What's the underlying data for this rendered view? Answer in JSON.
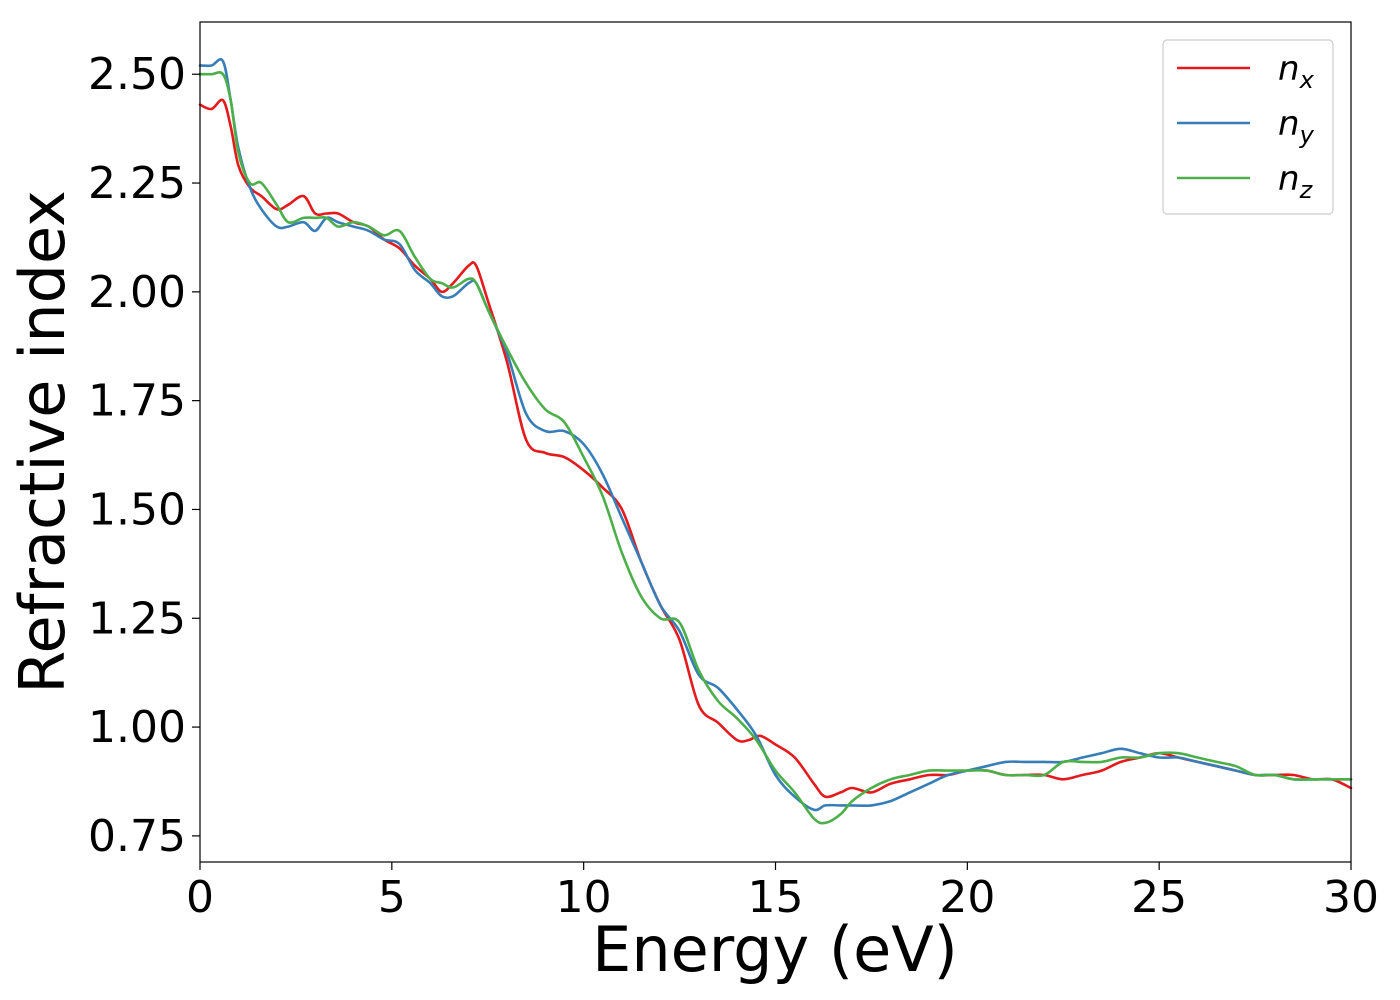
{
  "chart_data": {
    "type": "line",
    "title": "",
    "xlabel": "Energy (eV)",
    "ylabel": "Refractive index",
    "xlim": [
      0,
      30
    ],
    "ylim": [
      0.69,
      2.62
    ],
    "xticks": [
      0,
      5,
      10,
      15,
      20,
      25,
      30
    ],
    "xtick_labels": [
      "0",
      "5",
      "10",
      "15",
      "20",
      "25",
      "30"
    ],
    "yticks": [
      0.75,
      1.0,
      1.25,
      1.5,
      1.75,
      2.0,
      2.25,
      2.5
    ],
    "ytick_labels": [
      "0.75",
      "1.00",
      "1.25",
      "1.50",
      "1.75",
      "2.00",
      "2.25",
      "2.50"
    ],
    "grid": false,
    "legend": {
      "position": "top-right",
      "entries": [
        {
          "base": "n",
          "sub": "x",
          "color": "#e41a1c"
        },
        {
          "base": "n",
          "sub": "y",
          "color": "#377eb8"
        },
        {
          "base": "n",
          "sub": "z",
          "color": "#4daf4a"
        }
      ]
    },
    "series": [
      {
        "name": "nx",
        "color": "#e41a1c",
        "x": [
          0,
          0.3,
          0.6,
          0.8,
          1.0,
          1.3,
          1.6,
          2.0,
          2.3,
          2.7,
          3.0,
          3.3,
          3.6,
          4.0,
          4.4,
          4.8,
          5.2,
          5.6,
          6.0,
          6.3,
          6.6,
          7.0,
          7.2,
          7.5,
          8.0,
          8.5,
          9.0,
          9.5,
          10.0,
          10.5,
          11.0,
          11.5,
          12.0,
          12.5,
          13.0,
          13.5,
          14.0,
          14.3,
          14.6,
          15.0,
          15.5,
          16.0,
          16.3,
          16.7,
          17.0,
          17.5,
          18.0,
          18.5,
          19.0,
          19.5,
          20.0,
          20.5,
          21.0,
          21.5,
          22.0,
          22.5,
          23.0,
          23.5,
          24.0,
          24.5,
          25.0,
          25.5,
          26.0,
          26.5,
          27.0,
          27.5,
          28.0,
          28.5,
          29.0,
          29.5,
          30.0
        ],
        "y": [
          2.43,
          2.42,
          2.44,
          2.38,
          2.29,
          2.24,
          2.22,
          2.19,
          2.2,
          2.22,
          2.18,
          2.18,
          2.18,
          2.16,
          2.15,
          2.12,
          2.1,
          2.06,
          2.03,
          2.0,
          2.02,
          2.06,
          2.06,
          1.98,
          1.84,
          1.66,
          1.63,
          1.62,
          1.59,
          1.55,
          1.5,
          1.38,
          1.28,
          1.2,
          1.05,
          1.01,
          0.97,
          0.97,
          0.98,
          0.96,
          0.93,
          0.87,
          0.84,
          0.85,
          0.86,
          0.85,
          0.87,
          0.88,
          0.89,
          0.89,
          0.9,
          0.9,
          0.89,
          0.89,
          0.89,
          0.88,
          0.89,
          0.9,
          0.92,
          0.93,
          0.94,
          0.93,
          0.92,
          0.91,
          0.9,
          0.89,
          0.89,
          0.89,
          0.88,
          0.88,
          0.86
        ]
      },
      {
        "name": "ny",
        "color": "#377eb8",
        "x": [
          0,
          0.3,
          0.6,
          0.8,
          1.0,
          1.3,
          1.6,
          2.0,
          2.3,
          2.7,
          3.0,
          3.3,
          3.6,
          4.0,
          4.4,
          4.8,
          5.2,
          5.6,
          6.0,
          6.3,
          6.6,
          7.0,
          7.2,
          7.5,
          8.0,
          8.5,
          9.0,
          9.5,
          10.0,
          10.5,
          11.0,
          11.5,
          12.0,
          12.5,
          13.0,
          13.5,
          14.0,
          14.5,
          15.0,
          15.5,
          16.0,
          16.3,
          16.7,
          17.0,
          17.5,
          18.0,
          18.5,
          19.0,
          19.5,
          20.0,
          20.5,
          21.0,
          21.5,
          22.0,
          22.5,
          23.0,
          23.5,
          24.0,
          24.5,
          25.0,
          25.5,
          26.0,
          26.5,
          27.0,
          27.5,
          28.0,
          28.5,
          29.0,
          29.5,
          30.0
        ],
        "y": [
          2.52,
          2.52,
          2.53,
          2.44,
          2.33,
          2.24,
          2.19,
          2.15,
          2.15,
          2.16,
          2.14,
          2.17,
          2.16,
          2.15,
          2.14,
          2.12,
          2.11,
          2.05,
          2.02,
          1.99,
          1.99,
          2.02,
          2.02,
          1.96,
          1.86,
          1.72,
          1.68,
          1.68,
          1.65,
          1.58,
          1.48,
          1.38,
          1.28,
          1.22,
          1.12,
          1.09,
          1.04,
          0.98,
          0.89,
          0.84,
          0.81,
          0.82,
          0.82,
          0.82,
          0.82,
          0.83,
          0.85,
          0.87,
          0.89,
          0.9,
          0.91,
          0.92,
          0.92,
          0.92,
          0.92,
          0.93,
          0.94,
          0.95,
          0.94,
          0.93,
          0.93,
          0.92,
          0.91,
          0.9,
          0.89,
          0.89,
          0.88,
          0.88,
          0.88,
          0.88
        ]
      },
      {
        "name": "nz",
        "color": "#4daf4a",
        "x": [
          0,
          0.3,
          0.6,
          0.8,
          1.0,
          1.3,
          1.6,
          2.0,
          2.3,
          2.7,
          3.0,
          3.3,
          3.6,
          4.0,
          4.4,
          4.8,
          5.2,
          5.6,
          6.0,
          6.3,
          6.6,
          7.0,
          7.2,
          7.5,
          8.0,
          8.5,
          9.0,
          9.5,
          10.0,
          10.5,
          11.0,
          11.5,
          12.0,
          12.5,
          13.0,
          13.5,
          14.0,
          14.5,
          15.0,
          15.5,
          16.0,
          16.3,
          16.7,
          17.0,
          17.5,
          18.0,
          18.5,
          19.0,
          19.5,
          20.0,
          20.5,
          21.0,
          21.5,
          22.0,
          22.5,
          23.0,
          23.5,
          24.0,
          24.5,
          25.0,
          25.5,
          26.0,
          26.5,
          27.0,
          27.5,
          28.0,
          28.5,
          29.0,
          29.5,
          30.0
        ],
        "y": [
          2.5,
          2.5,
          2.5,
          2.44,
          2.32,
          2.25,
          2.25,
          2.2,
          2.16,
          2.17,
          2.17,
          2.17,
          2.15,
          2.16,
          2.15,
          2.13,
          2.14,
          2.08,
          2.03,
          2.02,
          2.01,
          2.03,
          2.02,
          1.96,
          1.87,
          1.79,
          1.73,
          1.7,
          1.62,
          1.53,
          1.4,
          1.3,
          1.25,
          1.24,
          1.13,
          1.06,
          1.02,
          0.97,
          0.9,
          0.85,
          0.79,
          0.78,
          0.8,
          0.83,
          0.86,
          0.88,
          0.89,
          0.9,
          0.9,
          0.9,
          0.9,
          0.89,
          0.89,
          0.89,
          0.92,
          0.92,
          0.92,
          0.93,
          0.93,
          0.94,
          0.94,
          0.93,
          0.92,
          0.91,
          0.89,
          0.89,
          0.88,
          0.88,
          0.88,
          0.88
        ]
      }
    ]
  }
}
